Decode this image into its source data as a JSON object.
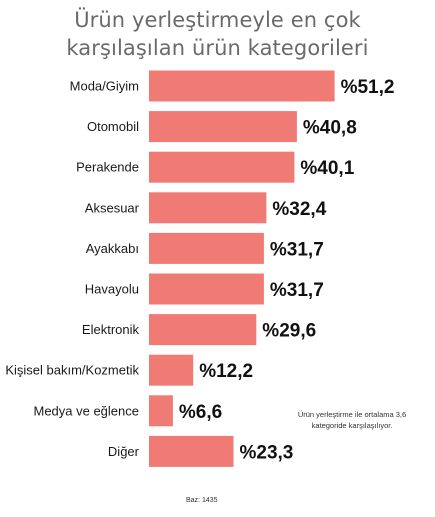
{
  "chart_data": {
    "type": "bar",
    "orientation": "horizontal",
    "title_lines": [
      "Ürün yerleştirmeyle en çok",
      "karşılaşılan ürün kategorileri"
    ],
    "categories": [
      "Moda/Giyim",
      "Otomobil",
      "Perakende",
      "Aksesuar",
      "Ayakkabı",
      "Havayolu",
      "Elektronik",
      "Kişisel bakım/Kozmetik",
      "Medya ve eğlence",
      "Diğer"
    ],
    "values": [
      51.2,
      40.8,
      40.1,
      32.4,
      31.7,
      31.7,
      29.6,
      12.2,
      6.6,
      23.3
    ],
    "value_labels": [
      "%51,2",
      "%40,8",
      "%40,1",
      "%32,4",
      "%31,7",
      "%31,7",
      "%29,6",
      "%12,2",
      "%6,6",
      "%23,3"
    ],
    "annotation": "Ürün yerleştirme ile ortalama 3,6 kategoride karşılaşılıyor.",
    "footnote": "Baz: 1435",
    "grid": false,
    "legend": "none",
    "bar_color": "#f07b75"
  }
}
